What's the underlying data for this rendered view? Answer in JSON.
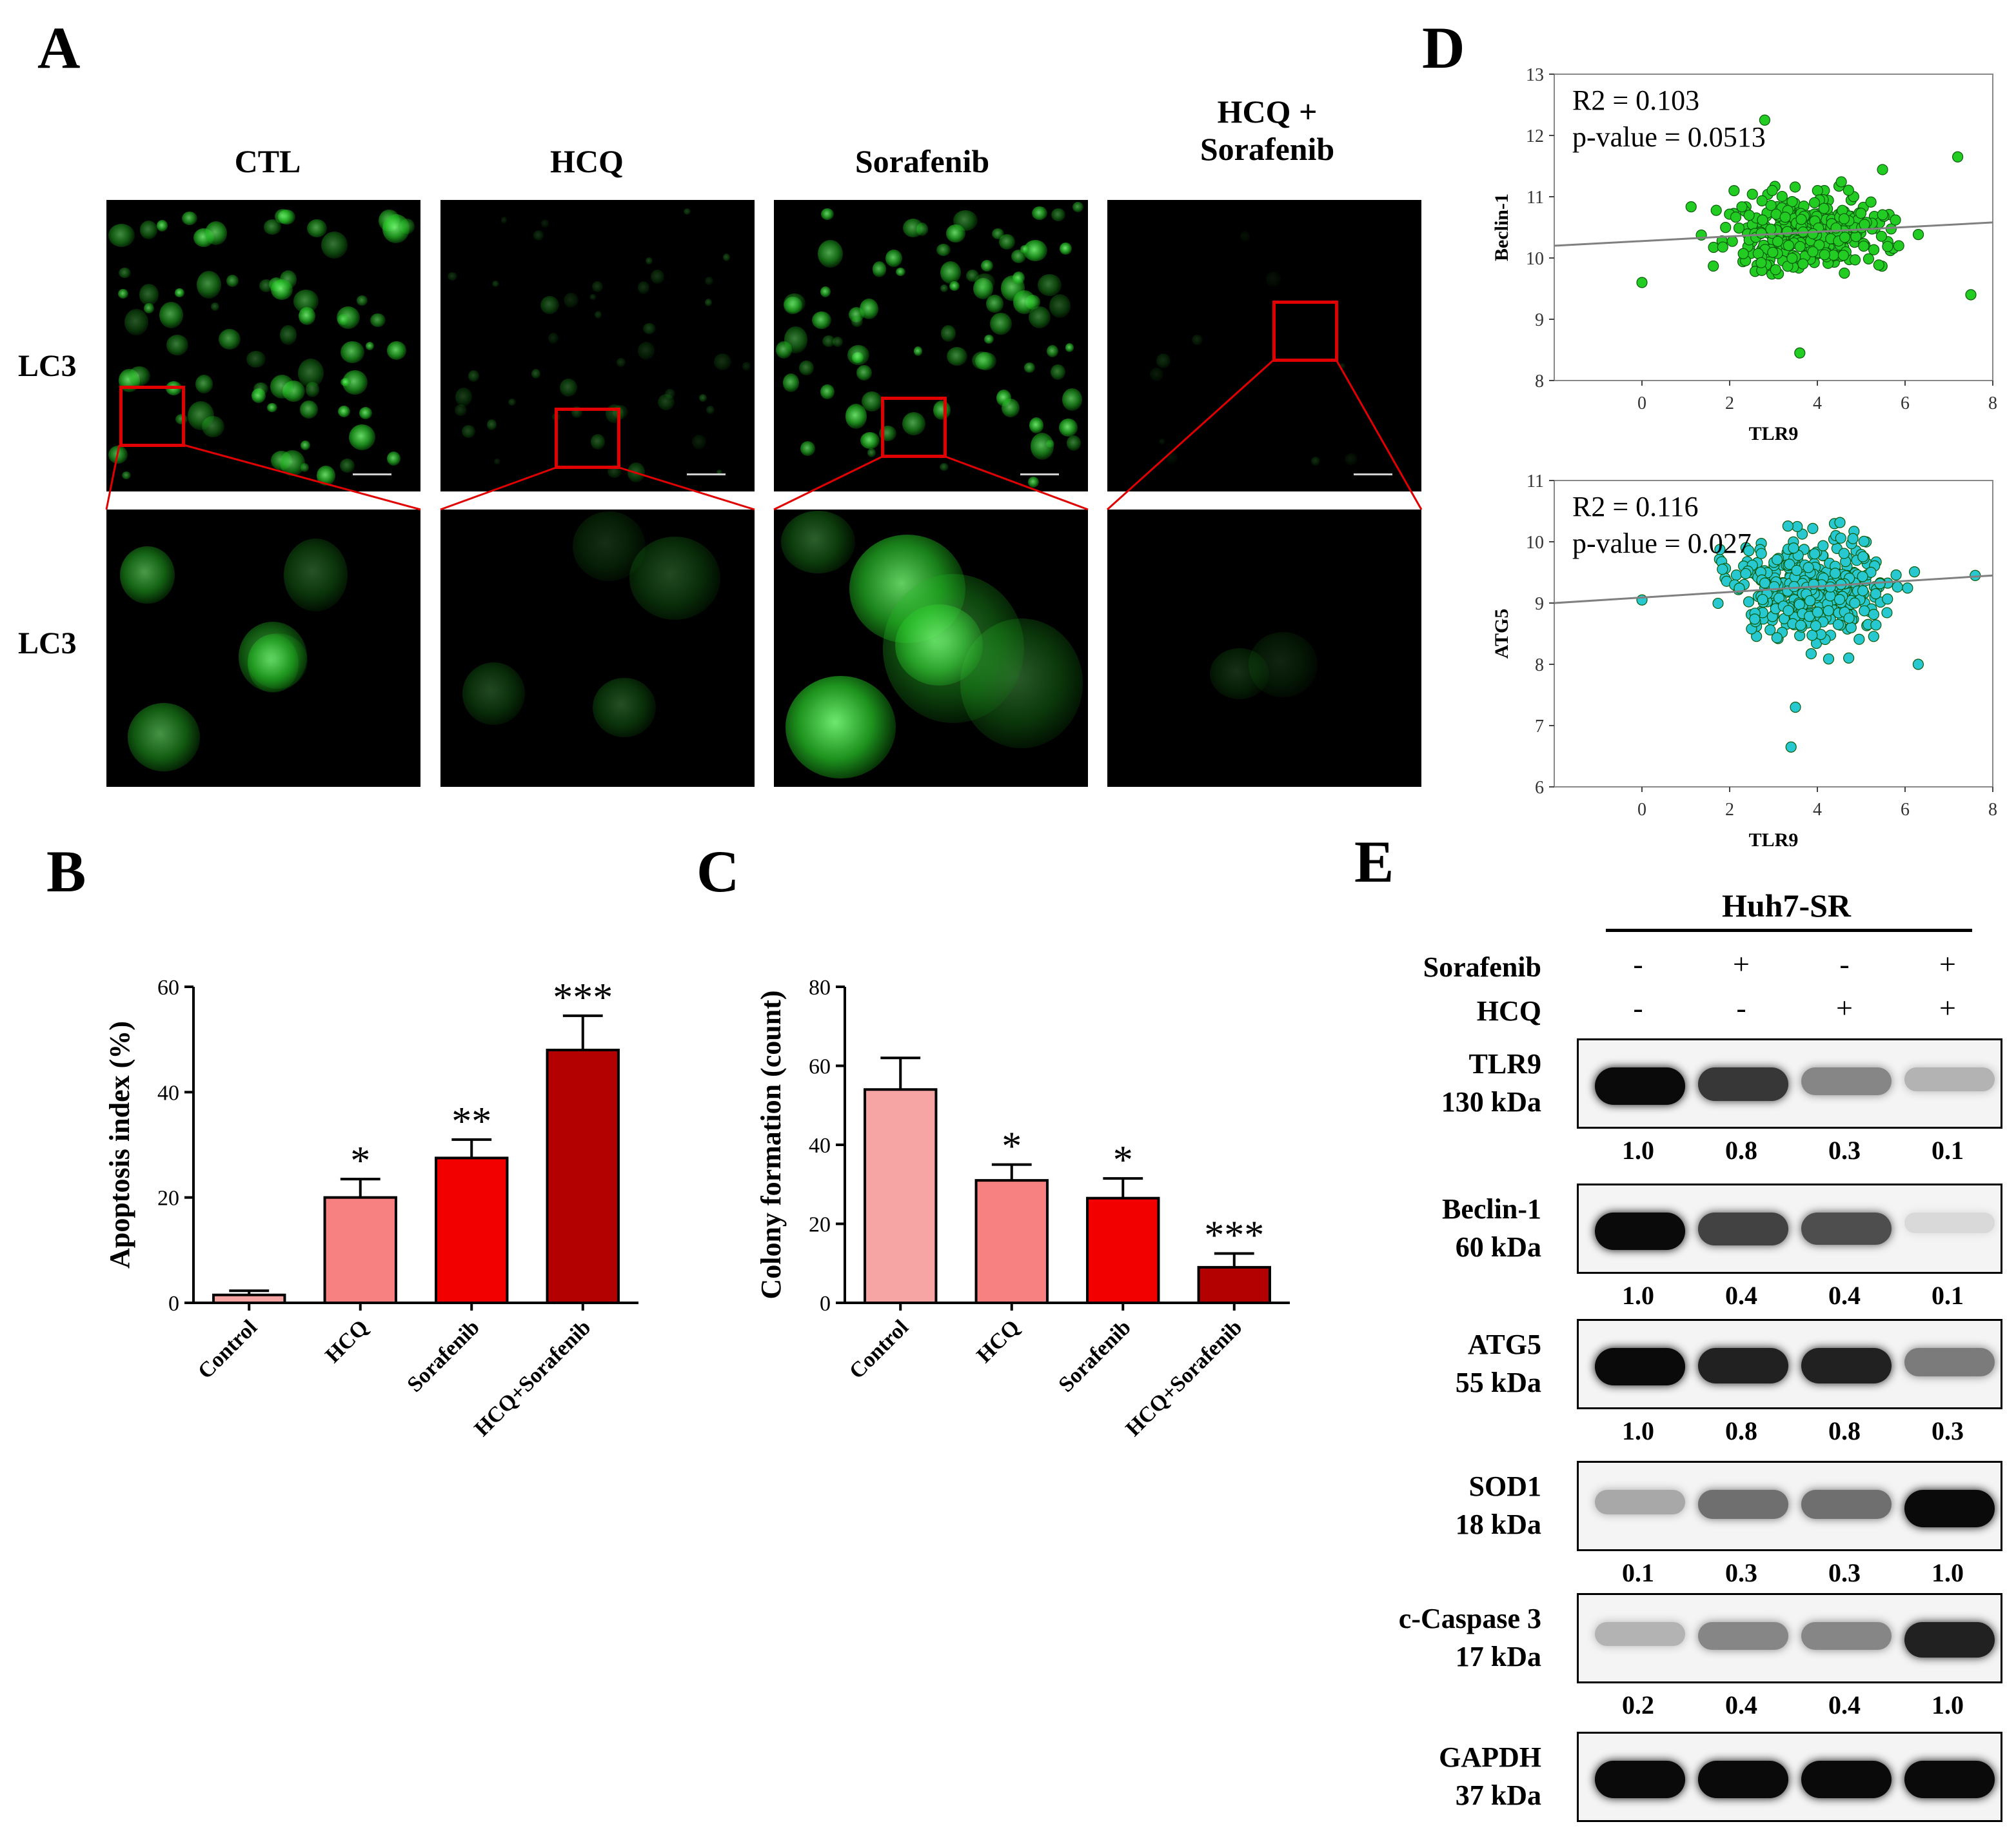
{
  "panel_labels": {
    "a": "A",
    "b": "B",
    "c": "C",
    "d": "D",
    "e": "E"
  },
  "panel_a": {
    "columns": [
      "CTL",
      "HCQ",
      "Sorafenib",
      "HCQ +\nSorafenib"
    ],
    "row_labels": [
      "LC3",
      "LC3"
    ],
    "scale_bar": "25 μm"
  },
  "chart_data": [
    {
      "id": "B",
      "type": "bar",
      "title": "",
      "categories": [
        "Control",
        "HCQ",
        "Sorafenib",
        "HCQ+Sorafenib"
      ],
      "values": [
        1.5,
        20,
        27.5,
        48
      ],
      "errors": [
        0.8,
        3.5,
        3.5,
        6.5
      ],
      "significance": [
        "",
        "*",
        "**",
        "***"
      ],
      "colors": [
        "#f7a4a4",
        "#f78080",
        "#f20000",
        "#b30000"
      ],
      "xlabel": "",
      "ylabel": "Apoptosis index (%)",
      "ylim": [
        0,
        60
      ],
      "yticks": [
        0,
        20,
        40,
        60
      ]
    },
    {
      "id": "C",
      "type": "bar",
      "title": "",
      "categories": [
        "Control",
        "HCQ",
        "Sorafenib",
        "HCQ+Sorafenib"
      ],
      "values": [
        54,
        31,
        26.5,
        9
      ],
      "errors": [
        8,
        4,
        5,
        3.5
      ],
      "significance": [
        "",
        "*",
        "*",
        "***"
      ],
      "colors": [
        "#f7a4a4",
        "#f78080",
        "#f20000",
        "#b30000"
      ],
      "xlabel": "",
      "ylabel": "Colony formation (count)",
      "ylim": [
        0,
        80
      ],
      "yticks": [
        0,
        20,
        40,
        60,
        80
      ]
    },
    {
      "id": "D-top",
      "type": "scatter",
      "title": "",
      "xlabel": "TLR9",
      "ylabel": "Beclin-1",
      "xlim": [
        -2,
        8
      ],
      "ylim": [
        8,
        13
      ],
      "xticks": [
        0,
        2,
        4,
        6,
        8
      ],
      "yticks": [
        8,
        9,
        10,
        11,
        12,
        13
      ],
      "annotation": [
        "R2 = 0.103",
        "p-value = 0.0513"
      ],
      "color": "#22cc22",
      "trend": {
        "x0": -2,
        "y0": 10.2,
        "x1": 8,
        "y1": 10.58
      },
      "cloud": {
        "center_x": 3.8,
        "center_y": 10.45,
        "spread_x": 1.2,
        "spread_y": 0.45,
        "n": 380
      },
      "outliers": [
        [
          0,
          9.6
        ],
        [
          2.8,
          12.25
        ],
        [
          3.6,
          8.45
        ],
        [
          7.2,
          11.65
        ],
        [
          7.5,
          9.4
        ]
      ]
    },
    {
      "id": "D-bottom",
      "type": "scatter",
      "title": "",
      "xlabel": "TLR9",
      "ylabel": "ATG5",
      "xlim": [
        -2,
        8
      ],
      "ylim": [
        6,
        11
      ],
      "xticks": [
        0,
        2,
        4,
        6,
        8
      ],
      "yticks": [
        6,
        7,
        8,
        9,
        10,
        11
      ],
      "annotation": [
        "R2 = 0.116",
        "p-value = 0.027"
      ],
      "color": "#27c8d0",
      "trend": {
        "x0": -2,
        "y0": 9.0,
        "x1": 8,
        "y1": 9.45
      },
      "cloud": {
        "center_x": 3.9,
        "center_y": 9.25,
        "spread_x": 1.25,
        "spread_y": 0.55,
        "n": 380
      },
      "outliers": [
        [
          0,
          9.05
        ],
        [
          3.5,
          7.3
        ],
        [
          3.4,
          6.65
        ],
        [
          6.3,
          8.0
        ],
        [
          7.6,
          9.45
        ]
      ]
    }
  ],
  "panel_e": {
    "cell_line": "Huh7-SR",
    "treatments": [
      {
        "name": "Sorafenib",
        "signs": [
          "-",
          "+",
          "-",
          "+"
        ]
      },
      {
        "name": "HCQ",
        "signs": [
          "-",
          "-",
          "+",
          "+"
        ]
      }
    ],
    "blots": [
      {
        "protein": "TLR9",
        "size": "130 kDa",
        "values": [
          "1.0",
          "0.8",
          "0.3",
          "0.1"
        ],
        "intensity": [
          1.0,
          0.8,
          0.45,
          0.25
        ]
      },
      {
        "protein": "Beclin-1",
        "size": "60 kDa",
        "values": [
          "1.0",
          "0.4",
          "0.4",
          "0.1"
        ],
        "intensity": [
          1.0,
          0.75,
          0.7,
          0.08
        ]
      },
      {
        "protein": "ATG5",
        "size": "55 kDa",
        "values": [
          "1.0",
          "0.8",
          "0.8",
          "0.3"
        ],
        "intensity": [
          1.0,
          0.9,
          0.9,
          0.5
        ]
      },
      {
        "protein": "SOD1",
        "size": "18 kDa",
        "values": [
          "0.1",
          "0.3",
          "0.3",
          "1.0"
        ],
        "intensity": [
          0.3,
          0.55,
          0.55,
          1.0
        ]
      },
      {
        "protein": "c-Caspase 3",
        "size": "17 kDa",
        "values": [
          "0.2",
          "0.4",
          "0.4",
          "1.0"
        ],
        "intensity": [
          0.25,
          0.45,
          0.45,
          0.9
        ]
      },
      {
        "protein": "GAPDH",
        "size": "37 kDa",
        "values": [],
        "intensity": [
          1.0,
          1.0,
          1.0,
          1.0
        ]
      }
    ]
  }
}
